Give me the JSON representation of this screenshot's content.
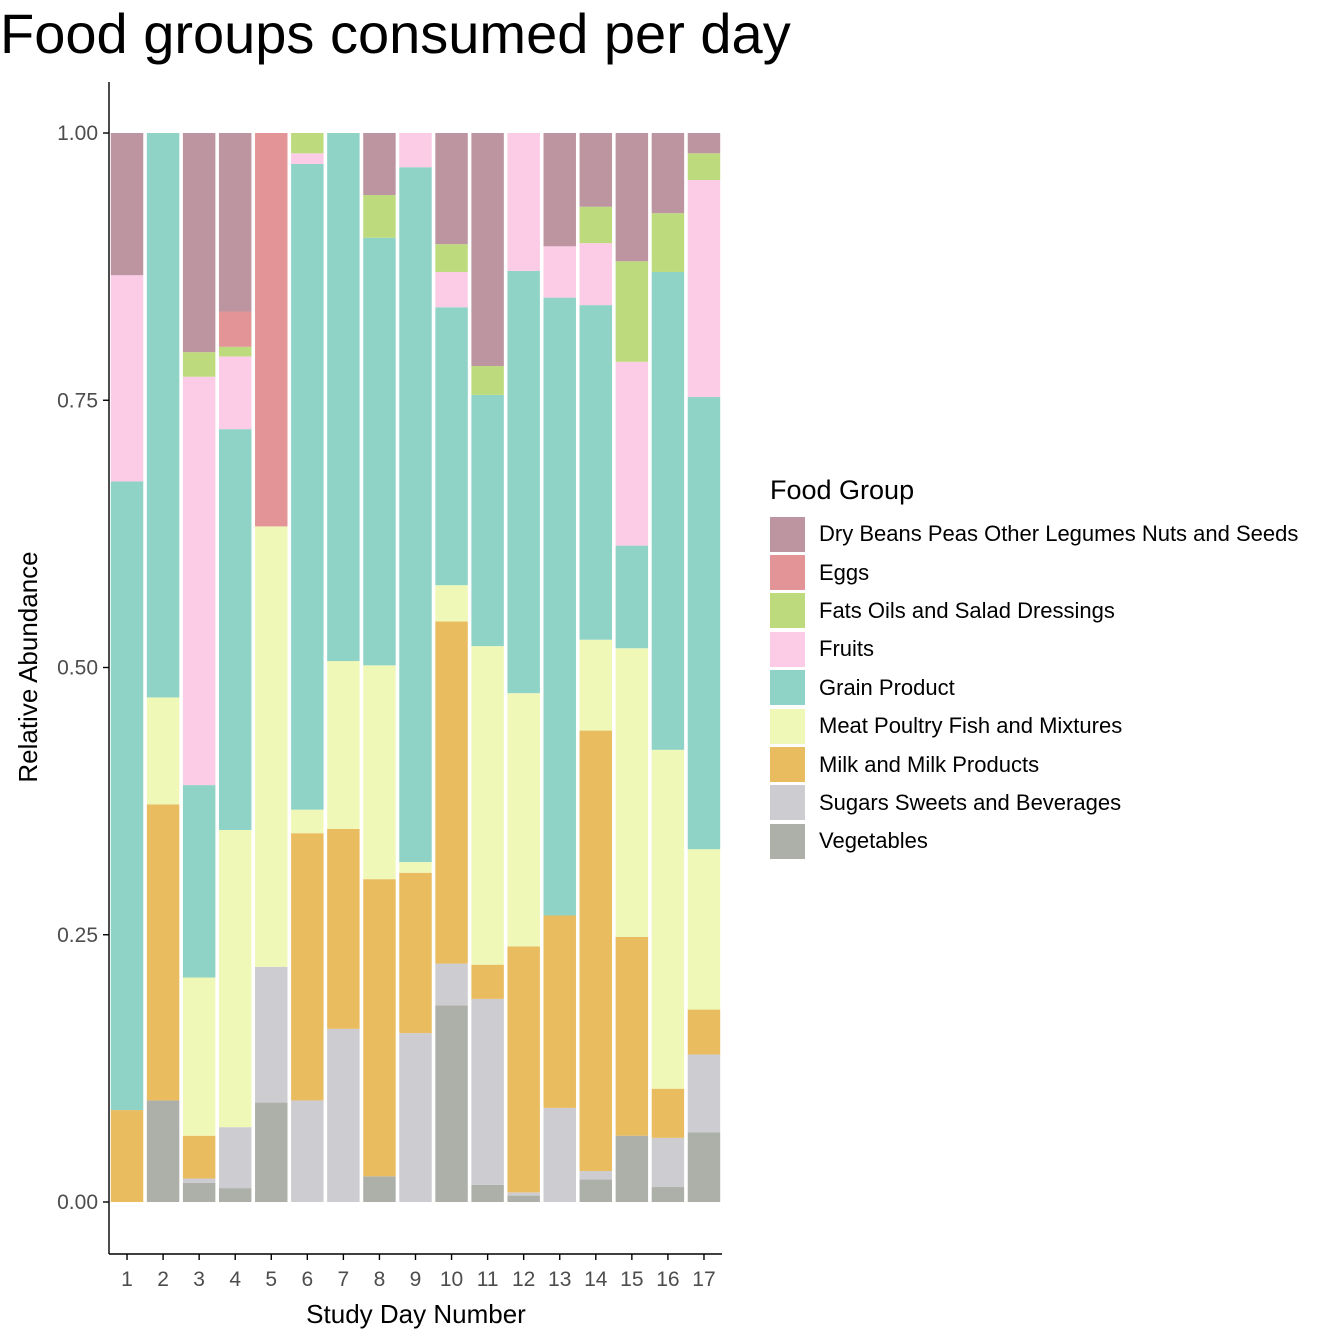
{
  "chart_data": {
    "type": "bar",
    "stacked": true,
    "title": "Food groups consumed per day",
    "xlabel": "Study Day Number",
    "ylabel": "Relative Abundance",
    "legend_title": "Food Group",
    "legend_position": "right",
    "grid": false,
    "ylim": [
      -0.05,
      1.05
    ],
    "yticks": [
      "0.00",
      "0.25",
      "0.50",
      "0.75",
      "1.00"
    ],
    "categories": [
      "1",
      "2",
      "3",
      "4",
      "5",
      "6",
      "7",
      "8",
      "9",
      "10",
      "11",
      "12",
      "13",
      "14",
      "15",
      "16",
      "17"
    ],
    "series": [
      {
        "name": "Vegetables",
        "color": "#ADB0A9",
        "values": [
          0,
          0.095,
          0.018,
          0.013,
          0.093,
          0,
          0,
          0.024,
          0,
          0.184,
          0.016,
          0.006,
          0,
          0.021,
          0.062,
          0.014,
          0.065
        ]
      },
      {
        "name": "Sugars Sweets and Beverages",
        "color": "#CDCCD1",
        "values": [
          0,
          0,
          0.004,
          0.057,
          0.127,
          0.095,
          0.162,
          0,
          0.158,
          0.039,
          0.174,
          0.003,
          0.088,
          0.008,
          0,
          0.046,
          0.073
        ]
      },
      {
        "name": "Milk and Milk Products",
        "color": "#E9BC60",
        "values": [
          0.086,
          0.277,
          0.04,
          0,
          0,
          0.25,
          0.187,
          0.278,
          0.15,
          0.32,
          0.032,
          0.23,
          0.18,
          0.412,
          0.186,
          0.046,
          0.042
        ]
      },
      {
        "name": "Meat Poultry Fish and Mixtures",
        "color": "#F0F8B7",
        "values": [
          0,
          0.1,
          0.148,
          0.278,
          0.412,
          0.022,
          0.157,
          0.2,
          0.01,
          0.034,
          0.298,
          0.237,
          0,
          0.085,
          0.27,
          0.317,
          0.15
        ]
      },
      {
        "name": "Grain Product",
        "color": "#8FD3C7",
        "values": [
          0.588,
          0.528,
          0.18,
          0.375,
          0,
          0.604,
          0.494,
          0.4,
          0.65,
          0.26,
          0.235,
          0.395,
          0.578,
          0.313,
          0.096,
          0.447,
          0.423
        ]
      },
      {
        "name": "Fruits",
        "color": "#FCCBE5",
        "values": [
          0.193,
          0,
          0.382,
          0.068,
          0,
          0.01,
          0,
          0,
          0.032,
          0.033,
          0,
          0.129,
          0.048,
          0.058,
          0.172,
          0,
          0.203
        ]
      },
      {
        "name": "Fats Oils and Salad Dressings",
        "color": "#BDDB7C",
        "values": [
          0,
          0,
          0.023,
          0.009,
          0,
          0.019,
          0,
          0.04,
          0,
          0.026,
          0.027,
          0,
          0,
          0.034,
          0.094,
          0.055,
          0.025
        ]
      },
      {
        "name": "Eggs",
        "color": "#E29497",
        "values": [
          0,
          0,
          0,
          0.033,
          0.368,
          0,
          0,
          0,
          0,
          0,
          0,
          0,
          0,
          0,
          0,
          0,
          0
        ]
      },
      {
        "name": "Dry Beans Peas Other Legumes Nuts and Seeds",
        "color": "#BC95A0",
        "values": [
          0.133,
          0,
          0.205,
          0.167,
          0,
          0,
          0,
          0.058,
          0,
          0.104,
          0.218,
          0,
          0.106,
          0.069,
          0.12,
          0.075,
          0.019
        ]
      }
    ]
  },
  "legend_items": [
    {
      "label": "Dry Beans Peas Other Legumes Nuts and Seeds",
      "color": "#BC95A0"
    },
    {
      "label": "Eggs",
      "color": "#E29497"
    },
    {
      "label": "Fats Oils and Salad Dressings",
      "color": "#BDDB7C"
    },
    {
      "label": "Fruits",
      "color": "#FCCBE5"
    },
    {
      "label": "Grain Product",
      "color": "#8FD3C7"
    },
    {
      "label": "Meat Poultry Fish and Mixtures",
      "color": "#F0F8B7"
    },
    {
      "label": "Milk and Milk Products",
      "color": "#E9BC60"
    },
    {
      "label": "Sugars Sweets and Beverages",
      "color": "#CDCCD1"
    },
    {
      "label": "Vegetables",
      "color": "#ADB0A9"
    }
  ]
}
